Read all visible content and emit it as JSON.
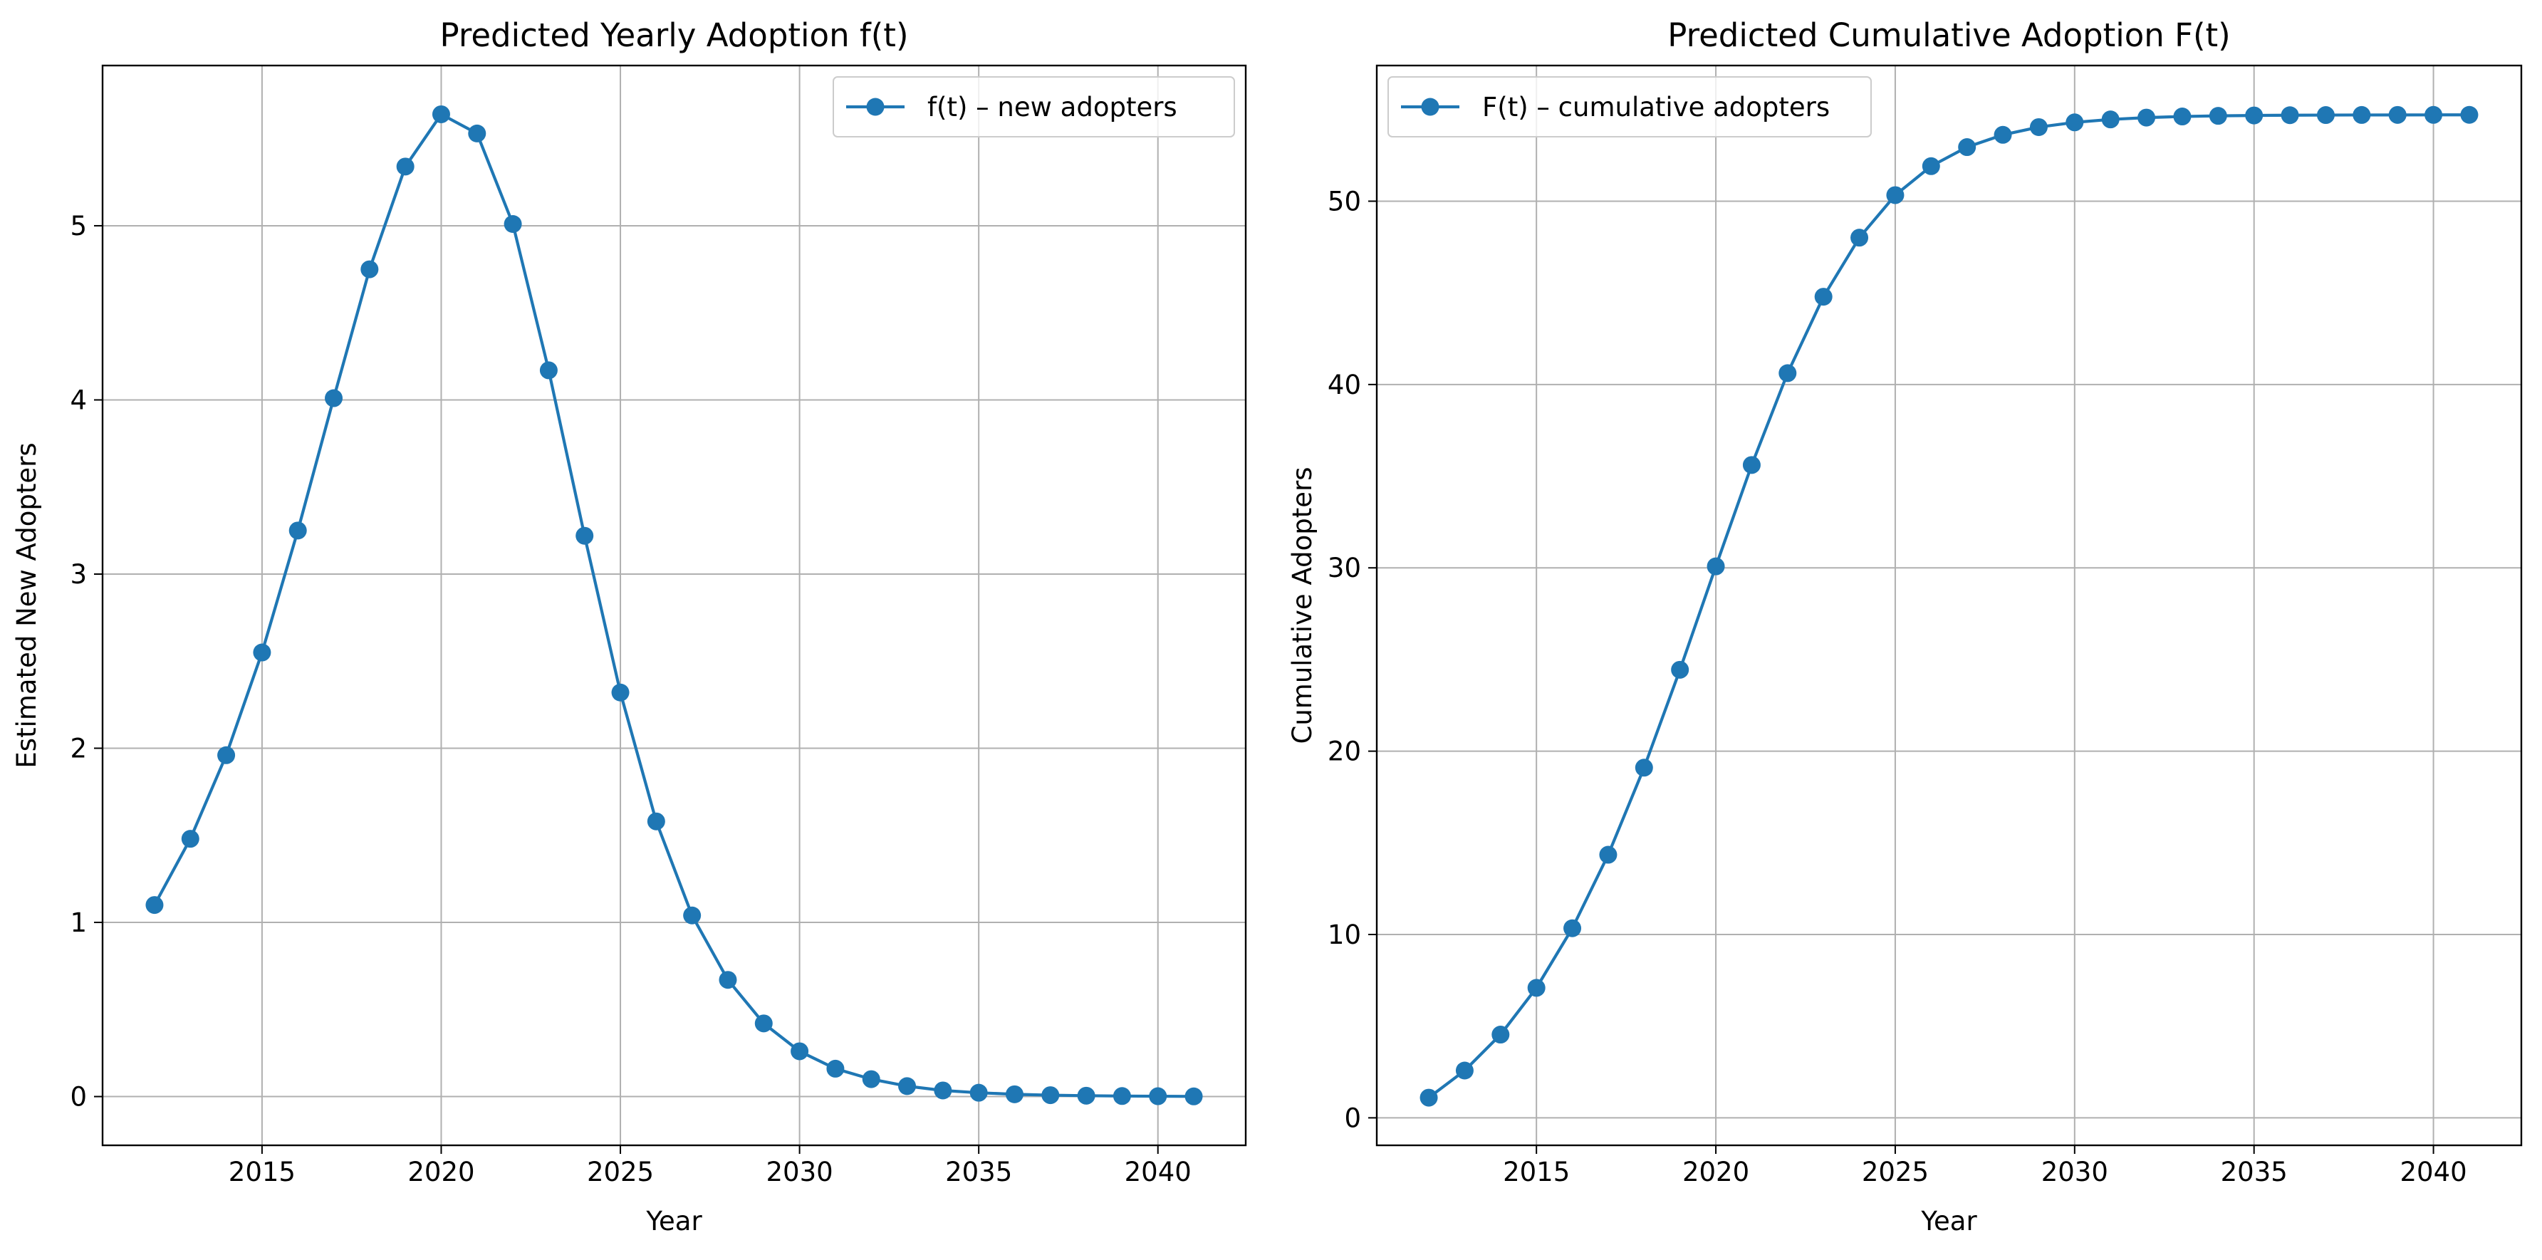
{
  "chart_data": [
    {
      "type": "line",
      "title": "Predicted Yearly Adoption f(t)",
      "xlabel": "Year",
      "ylabel": "Estimated New Adopters",
      "xlim": [
        2010.55,
        2042.45
      ],
      "ylim": [
        -0.28,
        5.92
      ],
      "xticks": [
        2015,
        2020,
        2025,
        2030,
        2035,
        2040
      ],
      "yticks": [
        0,
        1,
        2,
        3,
        4,
        5
      ],
      "grid": true,
      "legend_position": "upper right",
      "color": "#1f77b4",
      "marker": "circle",
      "series": [
        {
          "name": "f(t) – new adopters",
          "x": [
            2012,
            2013,
            2014,
            2015,
            2016,
            2017,
            2018,
            2019,
            2020,
            2021,
            2022,
            2023,
            2024,
            2025,
            2026,
            2027,
            2028,
            2029,
            2030,
            2031,
            2032,
            2033,
            2034,
            2035,
            2036,
            2037,
            2038,
            2039,
            2040,
            2041
          ],
          "y": [
            1.1,
            1.48,
            1.96,
            2.55,
            3.25,
            4.01,
            4.75,
            5.34,
            5.64,
            5.53,
            5.01,
            4.17,
            3.22,
            2.32,
            1.58,
            1.04,
            0.67,
            0.42,
            0.26,
            0.16,
            0.1,
            0.06,
            0.035,
            0.022,
            0.013,
            0.008,
            0.005,
            0.003,
            0.002,
            0.001
          ]
        }
      ]
    },
    {
      "type": "line",
      "title": "Predicted Cumulative Adoption F(t)",
      "xlabel": "Year",
      "ylabel": "Cumulative Adopters",
      "xlim": [
        2010.55,
        2042.45
      ],
      "ylim": [
        -1.5,
        57.4
      ],
      "xticks": [
        2015,
        2020,
        2025,
        2030,
        2035,
        2040
      ],
      "yticks": [
        0,
        10,
        20,
        30,
        40,
        50
      ],
      "grid": true,
      "legend_position": "upper left",
      "color": "#1f77b4",
      "marker": "circle",
      "series": [
        {
          "name": "F(t) – cumulative adopters",
          "x": [
            2012,
            2013,
            2014,
            2015,
            2016,
            2017,
            2018,
            2019,
            2020,
            2021,
            2022,
            2023,
            2024,
            2025,
            2026,
            2027,
            2028,
            2029,
            2030,
            2031,
            2032,
            2033,
            2034,
            2035,
            2036,
            2037,
            2038,
            2039,
            2040,
            2041
          ],
          "y": [
            1.1,
            2.58,
            4.54,
            7.09,
            10.34,
            14.35,
            19.1,
            24.44,
            30.08,
            35.61,
            40.62,
            44.79,
            48.01,
            50.33,
            51.91,
            52.95,
            53.62,
            54.04,
            54.3,
            54.46,
            54.56,
            54.62,
            54.655,
            54.677,
            54.69,
            54.698,
            54.703,
            54.706,
            54.708,
            54.709
          ]
        }
      ]
    }
  ]
}
